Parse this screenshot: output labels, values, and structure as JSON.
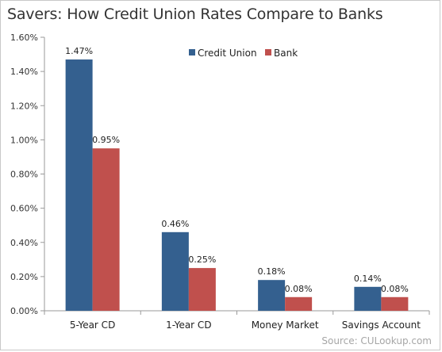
{
  "chart_data": {
    "type": "bar",
    "title": "Savers: How Credit Union Rates Compare to Banks",
    "categories": [
      "5-Year CD",
      "1-Year CD",
      "Money Market",
      "Savings Account"
    ],
    "series": [
      {
        "name": "Credit Union",
        "values": [
          1.47,
          0.46,
          0.18,
          0.14
        ],
        "labels": [
          "1.47%",
          "0.46%",
          "0.18%",
          "0.14%"
        ],
        "color": "#34608f"
      },
      {
        "name": "Bank",
        "values": [
          0.95,
          0.25,
          0.08,
          0.08
        ],
        "labels": [
          "0.95%",
          "0.25%",
          "0.08%",
          "0.08%"
        ],
        "color": "#c0504d"
      }
    ],
    "ylim": [
      0,
      1.6
    ],
    "yticks": [
      0,
      0.2,
      0.4,
      0.6,
      0.8,
      1.0,
      1.2,
      1.4,
      1.6
    ],
    "ytick_labels": [
      "0.00%",
      "0.20%",
      "0.40%",
      "0.60%",
      "0.80%",
      "1.00%",
      "1.20%",
      "1.40%",
      "1.60%"
    ],
    "grid": false,
    "legend_position": "top-center"
  },
  "source": "Source: CULookup.com"
}
